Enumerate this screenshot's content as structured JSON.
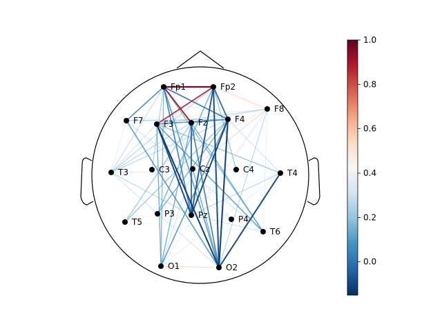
{
  "electrodes": [
    {
      "name": "Fp1"
    },
    {
      "name": "Fp2"
    },
    {
      "name": "F7"
    },
    {
      "name": "F3"
    },
    {
      "name": "Fz"
    },
    {
      "name": "F4"
    },
    {
      "name": "F8"
    },
    {
      "name": "T3"
    },
    {
      "name": "C3"
    },
    {
      "name": "Cz"
    },
    {
      "name": "C4"
    },
    {
      "name": "T4"
    },
    {
      "name": "T5"
    },
    {
      "name": "P3"
    },
    {
      "name": "Pz"
    },
    {
      "name": "P4"
    },
    {
      "name": "T6"
    },
    {
      "name": "O1"
    },
    {
      "name": "O2"
    }
  ],
  "colorbar": {
    "colormap": "RdBu_r",
    "min": -0.15,
    "max": 1.0,
    "ticks": [
      "0.0",
      "0.2",
      "0.4",
      "0.6",
      "0.8",
      "1.0"
    ]
  },
  "connections": [
    {
      "a": "Fp1",
      "b": "Fp2",
      "value": 0.98
    },
    {
      "a": "Fp1",
      "b": "Fz",
      "value": 0.92
    },
    {
      "a": "Fp2",
      "b": "F3",
      "value": 0.88
    },
    {
      "a": "Fp1",
      "b": "F4",
      "value": -0.02
    },
    {
      "a": "Fp1",
      "b": "F7",
      "value": 0.02
    },
    {
      "a": "Fp1",
      "b": "Pz",
      "value": 0.0
    },
    {
      "a": "Fp1",
      "b": "O1",
      "value": 0.12
    },
    {
      "a": "Fp1",
      "b": "O2",
      "value": 0.05
    },
    {
      "a": "Fp1",
      "b": "C3",
      "value": 0.18
    },
    {
      "a": "Fp1",
      "b": "Cz",
      "value": 0.25
    },
    {
      "a": "Fp1",
      "b": "T3",
      "value": 0.22
    },
    {
      "a": "Fp2",
      "b": "F4",
      "value": -0.05
    },
    {
      "a": "Fp2",
      "b": "Pz",
      "value": -0.08
    },
    {
      "a": "Fp2",
      "b": "F8",
      "value": 0.6
    },
    {
      "a": "Fp2",
      "b": "O2",
      "value": -0.1
    },
    {
      "a": "Fp2",
      "b": "C4",
      "value": 0.15
    },
    {
      "a": "Fp2",
      "b": "T3",
      "value": 0.2
    },
    {
      "a": "Fp2",
      "b": "P3",
      "value": 0.1
    },
    {
      "a": "F3",
      "b": "O2",
      "value": -0.12
    },
    {
      "a": "F3",
      "b": "Pz",
      "value": -0.1
    },
    {
      "a": "F3",
      "b": "F4",
      "value": 0.05
    },
    {
      "a": "F3",
      "b": "F8",
      "value": 0.2
    },
    {
      "a": "F3",
      "b": "T4",
      "value": 0.15
    },
    {
      "a": "F3",
      "b": "T3",
      "value": 0.25
    },
    {
      "a": "F3",
      "b": "O1",
      "value": 0.1
    },
    {
      "a": "F3",
      "b": "P4",
      "value": 0.3
    },
    {
      "a": "F3",
      "b": "T6",
      "value": 0.08
    },
    {
      "a": "F4",
      "b": "O2",
      "value": -0.12
    },
    {
      "a": "F4",
      "b": "Pz",
      "value": -0.1
    },
    {
      "a": "F4",
      "b": "O1",
      "value": 0.05
    },
    {
      "a": "F4",
      "b": "T5",
      "value": 0.15
    },
    {
      "a": "F4",
      "b": "P3",
      "value": 0.1
    },
    {
      "a": "F4",
      "b": "T3",
      "value": 0.2
    },
    {
      "a": "F4",
      "b": "F7",
      "value": 0.18
    },
    {
      "a": "F4",
      "b": "Fz",
      "value": 0.1
    },
    {
      "a": "F4",
      "b": "T4",
      "value": 0.25
    },
    {
      "a": "T4",
      "b": "O2",
      "value": -0.1
    },
    {
      "a": "T4",
      "b": "T3",
      "value": 0.35
    },
    {
      "a": "T4",
      "b": "O1",
      "value": 0.3
    },
    {
      "a": "T4",
      "b": "F3",
      "value": 0.32
    },
    {
      "a": "T4",
      "b": "Pz",
      "value": 0.2
    },
    {
      "a": "T6",
      "b": "F8",
      "value": 0.3
    },
    {
      "a": "T6",
      "b": "F3",
      "value": 0.2
    },
    {
      "a": "T6",
      "b": "Fz",
      "value": 0.1
    },
    {
      "a": "T6",
      "b": "Fp1",
      "value": 0.12
    },
    {
      "a": "F7",
      "b": "O2",
      "value": 0.05
    },
    {
      "a": "F7",
      "b": "T6",
      "value": 0.25
    },
    {
      "a": "F7",
      "b": "F8",
      "value": 0.55
    },
    {
      "a": "F7",
      "b": "Fz",
      "value": 0.3
    },
    {
      "a": "Fz",
      "b": "Pz",
      "value": -0.05
    },
    {
      "a": "Fz",
      "b": "O1",
      "value": 0.1
    },
    {
      "a": "Fz",
      "b": "O2",
      "value": 0.0
    },
    {
      "a": "Fz",
      "b": "T5",
      "value": 0.15
    },
    {
      "a": "Fz",
      "b": "T3",
      "value": 0.2
    },
    {
      "a": "Fz",
      "b": "F8",
      "value": 0.25
    },
    {
      "a": "T3",
      "b": "Pz",
      "value": 0.2
    },
    {
      "a": "T3",
      "b": "C4",
      "value": 0.3
    },
    {
      "a": "T3",
      "b": "F8",
      "value": 0.45
    },
    {
      "a": "T5",
      "b": "F8",
      "value": 0.5
    },
    {
      "a": "T5",
      "b": "T6",
      "value": 0.35
    },
    {
      "a": "T5",
      "b": "C4",
      "value": 0.4
    },
    {
      "a": "O1",
      "b": "O2",
      "value": 0.6
    },
    {
      "a": "O1",
      "b": "F8",
      "value": 0.3
    },
    {
      "a": "O1",
      "b": "Cz",
      "value": 0.25
    },
    {
      "a": "O2",
      "b": "Cz",
      "value": 0.1
    },
    {
      "a": "O2",
      "b": "C3",
      "value": 0.3
    },
    {
      "a": "O2",
      "b": "T3",
      "value": 0.25
    },
    {
      "a": "O2",
      "b": "F8",
      "value": 0.2
    },
    {
      "a": "P3",
      "b": "F8",
      "value": 0.4
    },
    {
      "a": "P3",
      "b": "T4",
      "value": 0.35
    },
    {
      "a": "P4",
      "b": "F7",
      "value": 0.3
    },
    {
      "a": "P4",
      "b": "T3",
      "value": 0.4
    },
    {
      "a": "C3",
      "b": "C4",
      "value": 0.45
    },
    {
      "a": "C3",
      "b": "F8",
      "value": 0.55
    },
    {
      "a": "C4",
      "b": "F7",
      "value": 0.5
    },
    {
      "a": "Cz",
      "b": "T3",
      "value": 0.4
    },
    {
      "a": "Cz",
      "b": "F8",
      "value": 0.6
    },
    {
      "a": "Pz",
      "b": "F8",
      "value": 0.3
    },
    {
      "a": "Pz",
      "b": "T6",
      "value": 0.25
    },
    {
      "a": "T3",
      "b": "F7",
      "value": 0.3
    },
    {
      "a": "T5",
      "b": "P3",
      "value": 0.35
    },
    {
      "a": "P4",
      "b": "T6",
      "value": 0.4
    },
    {
      "a": "C3",
      "b": "P4",
      "value": 0.55
    },
    {
      "a": "Cz",
      "b": "P3",
      "value": 0.5
    },
    {
      "a": "F7",
      "b": "C3",
      "value": 0.45
    }
  ]
}
